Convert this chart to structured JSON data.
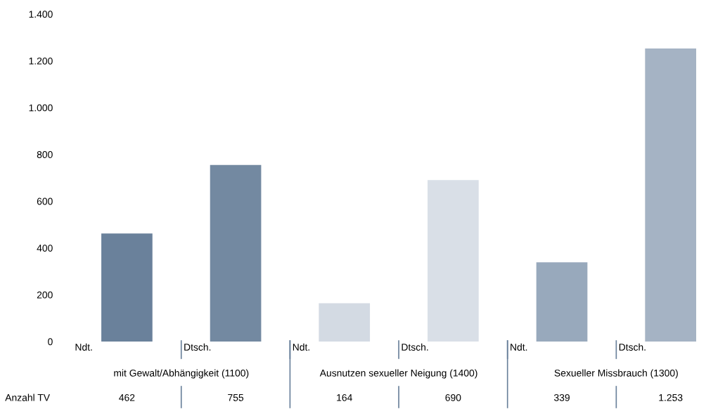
{
  "chart_data": {
    "type": "bar",
    "categories": [
      "Ndt.",
      "Dtsch.",
      "Ndt.",
      "Dtsch.",
      "Ndt.",
      "Dtsch."
    ],
    "values": [
      462,
      755,
      164,
      690,
      339,
      1253
    ],
    "colors": [
      "#6a819b",
      "#7389a1",
      "#d3dae3",
      "#d9dfe7",
      "#98a9bc",
      "#a5b3c4"
    ],
    "value_labels": [
      "462",
      "755",
      "164",
      "690",
      "339",
      "1.253"
    ],
    "ylim": [
      0,
      1400
    ],
    "yticks": [
      0,
      200,
      400,
      600,
      800,
      {
        "value": 1000,
        "label": "1.000"
      },
      {
        "value": 1200,
        "label": "1.200"
      },
      {
        "value": 1400,
        "label": "1.400"
      }
    ],
    "annotations": [
      "mit Gewalt/Abhängigkeit (1100)",
      "Ausnutzen sexueller Neigung (1400)",
      "Sexueller Missbrauch (1300)",
      "Anzahl TV"
    ],
    "data_labels": false
  }
}
